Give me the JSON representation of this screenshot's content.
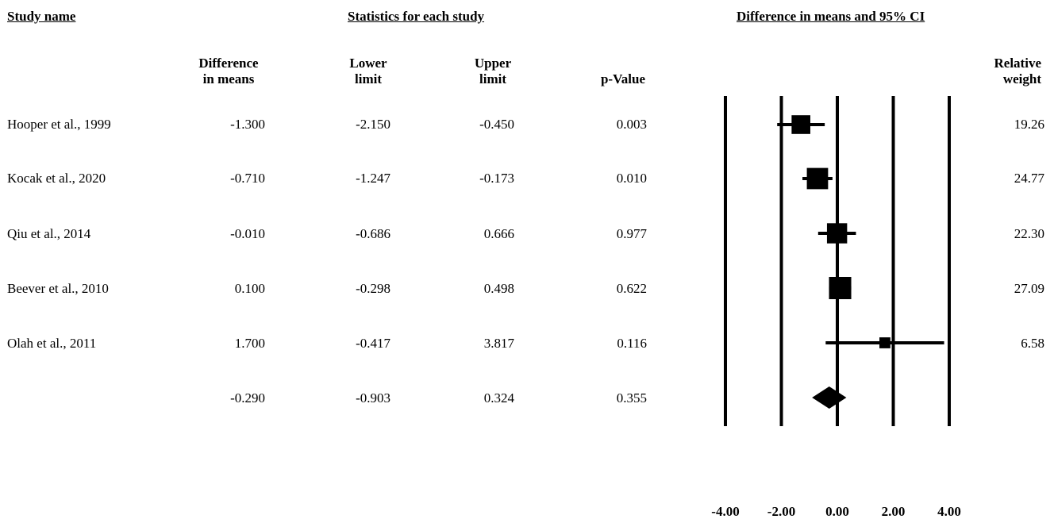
{
  "headers": {
    "study_name": "Study name",
    "statistics": "Statistics for each study",
    "ci": "Difference in means and 95% CI"
  },
  "columns": {
    "diff": [
      "Difference",
      "in means"
    ],
    "lower": [
      "Lower",
      "limit"
    ],
    "upper": [
      "Upper",
      "limit"
    ],
    "pvalue": "p-Value",
    "weight": [
      "Relative",
      "weight"
    ]
  },
  "rows": [
    {
      "study": "Hooper et al., 1999",
      "diff": "-1.300",
      "lower": "-2.150",
      "upper": "-0.450",
      "p": "0.003",
      "weight": "19.26"
    },
    {
      "study": "Kocak et al., 2020",
      "diff": "-0.710",
      "lower": "-1.247",
      "upper": "-0.173",
      "p": "0.010",
      "weight": "24.77"
    },
    {
      "study": "Qiu et al., 2014",
      "diff": "-0.010",
      "lower": "-0.686",
      "upper": "0.666",
      "p": "0.977",
      "weight": "22.30"
    },
    {
      "study": "Beever et al., 2010",
      "diff": "0.100",
      "lower": "-0.298",
      "upper": "0.498",
      "p": "0.622",
      "weight": "27.09"
    },
    {
      "study": "Olah et al., 2011",
      "diff": "1.700",
      "lower": "-0.417",
      "upper": "3.817",
      "p": "0.116",
      "weight": "6.58"
    }
  ],
  "summary": {
    "diff": "-0.290",
    "lower": "-0.903",
    "upper": "0.324",
    "p": "0.355"
  },
  "chart_data": {
    "type": "forest",
    "title": "Difference in means and 95% CI",
    "xlim": [
      -4,
      4
    ],
    "ticks": [
      "-4.00",
      "-2.00",
      "0.00",
      "2.00",
      "4.00"
    ],
    "tick_values": [
      -4,
      -2,
      0,
      2,
      4
    ],
    "studies": [
      {
        "name": "Hooper et al., 1999",
        "estimate": -1.3,
        "lower": -2.15,
        "upper": -0.45,
        "weight": 19.26
      },
      {
        "name": "Kocak et al., 2020",
        "estimate": -0.71,
        "lower": -1.247,
        "upper": -0.173,
        "weight": 24.77
      },
      {
        "name": "Qiu et al., 2014",
        "estimate": -0.01,
        "lower": -0.686,
        "upper": 0.666,
        "weight": 22.3
      },
      {
        "name": "Beever et al., 2010",
        "estimate": 0.1,
        "lower": -0.298,
        "upper": 0.498,
        "weight": 27.09
      },
      {
        "name": "Olah et al., 2011",
        "estimate": 1.7,
        "lower": -0.417,
        "upper": 3.817,
        "weight": 6.58
      }
    ],
    "pooled": {
      "estimate": -0.29,
      "lower": -0.903,
      "upper": 0.324
    },
    "colors": {
      "marks": "#000000"
    }
  }
}
